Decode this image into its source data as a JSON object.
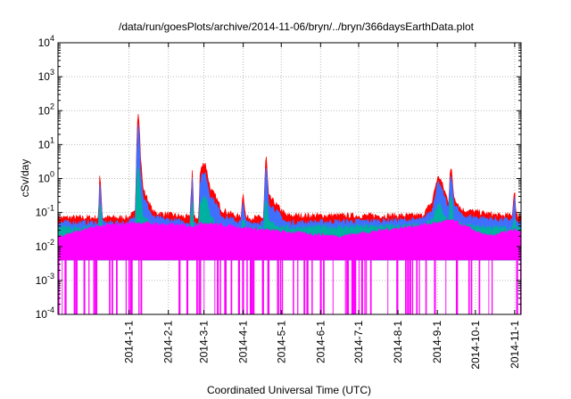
{
  "chart_data": {
    "type": "area",
    "title": "/data/run/goesPlots/archive/2014-11-06/bryn/../bryn/366daysEarthData.plot",
    "xlabel": "Coordinated Universal Time (UTC)",
    "ylabel": "cSv/day",
    "yscale": "log",
    "ylim": [
      0.0001,
      10000
    ],
    "ytick_labels": [
      "10-4",
      "10-3",
      "10-2",
      "10-1",
      "100",
      "101",
      "102",
      "103",
      "104"
    ],
    "xlim": [
      "2013-11-06",
      "2014-11-06"
    ],
    "xtick_labels": [
      "2014-1-1",
      "2014-2-1",
      "2014-3-1",
      "2014-4-1",
      "2014-5-1",
      "2014-6-1",
      "2014-7-1",
      "2014-8-1",
      "2014-9-1",
      "2014-10-1",
      "2014-11-1"
    ],
    "x_ticks": [
      "2014-01-01",
      "2014-02-01",
      "2014-03-01",
      "2014-04-01",
      "2014-05-01",
      "2014-06-01",
      "2014-07-01",
      "2014-08-01",
      "2014-09-01",
      "2014-10-01",
      "2014-11-01"
    ],
    "grid": true,
    "legend": "none",
    "series": [
      {
        "color": "#ff0000",
        "x": [
          "2013-11-06",
          "2013-12-08",
          "2013-12-09",
          "2013-12-11",
          "2013-12-31",
          "2014-01-06",
          "2014-01-07",
          "2014-01-08",
          "2014-01-09",
          "2014-01-10",
          "2014-01-12",
          "2014-01-20",
          "2014-02-18",
          "2014-02-20",
          "2014-02-21",
          "2014-02-25",
          "2014-02-26",
          "2014-02-28",
          "2014-03-02",
          "2014-03-06",
          "2014-03-10",
          "2014-03-15",
          "2014-03-30",
          "2014-04-01",
          "2014-04-03",
          "2014-04-17",
          "2014-04-18",
          "2014-04-19",
          "2014-04-21",
          "2014-05-05",
          "2014-08-20",
          "2014-08-28",
          "2014-08-30",
          "2014-09-01",
          "2014-09-03",
          "2014-09-06",
          "2014-09-10",
          "2014-09-11",
          "2014-09-12",
          "2014-09-14",
          "2014-09-20",
          "2014-10-20",
          "2014-10-30",
          "2014-11-01",
          "2014-11-02",
          "2014-11-06"
        ],
        "values": [
          0.07,
          0.07,
          2,
          0.07,
          0.07,
          0.1,
          10,
          120,
          50,
          5,
          0.5,
          0.1,
          0.07,
          2.3,
          0.07,
          0.07,
          1.5,
          2.5,
          3,
          0.5,
          0.3,
          0.12,
          0.07,
          0.4,
          0.07,
          0.07,
          0.8,
          6,
          0.3,
          0.08,
          0.08,
          0.2,
          0.5,
          1,
          1.1,
          0.5,
          0.2,
          1.5,
          2,
          0.3,
          0.12,
          0.08,
          0.08,
          0.6,
          0.08,
          0.08
        ]
      },
      {
        "color": "#3f6fff",
        "x": [
          "2013-11-06",
          "2013-12-08",
          "2013-12-09",
          "2013-12-11",
          "2013-12-31",
          "2014-01-06",
          "2014-01-07",
          "2014-01-08",
          "2014-01-09",
          "2014-01-10",
          "2014-01-12",
          "2014-01-20",
          "2014-02-18",
          "2014-02-20",
          "2014-02-21",
          "2014-02-25",
          "2014-02-26",
          "2014-02-28",
          "2014-03-02",
          "2014-03-06",
          "2014-03-10",
          "2014-03-15",
          "2014-03-30",
          "2014-04-01",
          "2014-04-03",
          "2014-04-17",
          "2014-04-18",
          "2014-04-19",
          "2014-04-21",
          "2014-05-05",
          "2014-08-20",
          "2014-08-28",
          "2014-08-30",
          "2014-09-01",
          "2014-09-03",
          "2014-09-06",
          "2014-09-10",
          "2014-09-11",
          "2014-09-12",
          "2014-09-14",
          "2014-09-20",
          "2014-10-20",
          "2014-10-30",
          "2014-11-01",
          "2014-11-02",
          "2014-11-06"
        ],
        "values": [
          0.05,
          0.05,
          1,
          0.05,
          0.05,
          0.07,
          5,
          60,
          25,
          2,
          0.3,
          0.07,
          0.05,
          1.2,
          0.05,
          0.05,
          0.8,
          1.3,
          1.5,
          0.3,
          0.2,
          0.08,
          0.05,
          0.2,
          0.05,
          0.05,
          0.5,
          3,
          0.2,
          0.05,
          0.06,
          0.12,
          0.3,
          0.7,
          0.8,
          0.3,
          0.12,
          0.9,
          1.2,
          0.2,
          0.08,
          0.06,
          0.06,
          0.3,
          0.05,
          0.05
        ]
      },
      {
        "color": "#00b0a0",
        "x": [
          "2013-11-06",
          "2013-12-08",
          "2013-12-09",
          "2013-12-11",
          "2013-12-31",
          "2014-01-06",
          "2014-01-07",
          "2014-01-08",
          "2014-01-09",
          "2014-01-10",
          "2014-01-12",
          "2014-01-20",
          "2014-02-18",
          "2014-02-20",
          "2014-02-21",
          "2014-02-25",
          "2014-02-26",
          "2014-02-28",
          "2014-03-02",
          "2014-03-06",
          "2014-03-10",
          "2014-03-15",
          "2014-03-30",
          "2014-04-01",
          "2014-04-03",
          "2014-04-17",
          "2014-04-18",
          "2014-04-19",
          "2014-04-21",
          "2014-05-05",
          "2014-08-20",
          "2014-08-28",
          "2014-08-30",
          "2014-09-01",
          "2014-09-03",
          "2014-09-06",
          "2014-09-10",
          "2014-09-11",
          "2014-09-12",
          "2014-09-14",
          "2014-09-20",
          "2014-10-20",
          "2014-10-30",
          "2014-11-01",
          "2014-11-02",
          "2014-11-06"
        ],
        "values": [
          0.035,
          0.035,
          0.2,
          0.035,
          0.035,
          0.04,
          0.5,
          3,
          1.5,
          0.3,
          0.08,
          0.04,
          0.035,
          0.2,
          0.035,
          0.035,
          0.15,
          0.25,
          0.3,
          0.08,
          0.05,
          0.04,
          0.035,
          0.06,
          0.035,
          0.035,
          0.1,
          0.3,
          0.05,
          0.035,
          0.04,
          0.06,
          0.1,
          0.15,
          0.2,
          0.08,
          0.05,
          0.2,
          0.3,
          0.06,
          0.04,
          0.035,
          0.035,
          0.06,
          0.035,
          0.035
        ]
      },
      {
        "color": "#ff00ff",
        "x": [
          "2013-11-06",
          "2013-12-09",
          "2014-01-08",
          "2014-02-20",
          "2014-03-01",
          "2014-04-19",
          "2014-06-15",
          "2014-09-02",
          "2014-09-12",
          "2014-10-10",
          "2014-11-01",
          "2014-11-06"
        ],
        "values": [
          0.02,
          0.04,
          0.05,
          0.04,
          0.05,
          0.03,
          0.02,
          0.05,
          0.06,
          0.02,
          0.03,
          0.025
        ],
        "lower": 0.004,
        "dropouts_to": 0.0001
      }
    ]
  }
}
